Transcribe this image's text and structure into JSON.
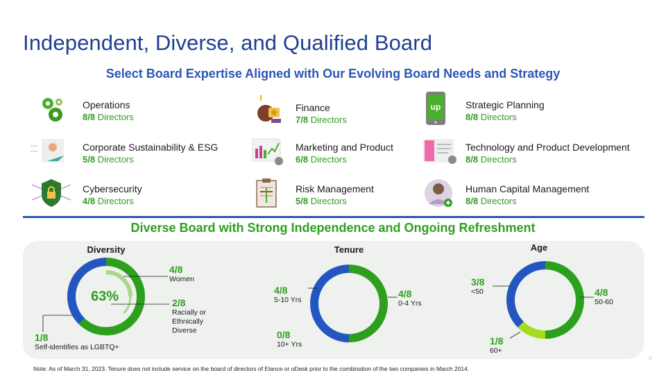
{
  "page": {
    "title": "Independent, Diverse, and Qualified Board",
    "subtitle": "Select Board Expertise Aligned with Our Evolving Board Needs and Strategy",
    "section2_title": "Diverse Board with Strong Independence and Ongoing Refreshment",
    "note": "Note: As of March 31, 2023. Tenure does not include service on the board of directors of Elance or oDesk prior to the combination of the two companies in March 2014.",
    "page_number": "9"
  },
  "expertise": [
    {
      "name": "Operations",
      "fraction": "8/8",
      "unit": "Directors",
      "icon": "gears-icon"
    },
    {
      "name": "Finance",
      "fraction": "7/8",
      "unit": "Directors",
      "icon": "finance-icon"
    },
    {
      "name": "Strategic Planning",
      "fraction": "8/8",
      "unit": "Directors",
      "icon": "upwork-phone-icon"
    },
    {
      "name": "Corporate Sustainability & ESG",
      "fraction": "5/8",
      "unit": "Directors",
      "icon": "sustainability-icon"
    },
    {
      "name": "Marketing and Product",
      "fraction": "6/8",
      "unit": "Directors",
      "icon": "marketing-chart-icon"
    },
    {
      "name": "Technology and Product Development",
      "fraction": "8/8",
      "unit": "Directors",
      "icon": "technology-icon"
    },
    {
      "name": "Cybersecurity",
      "fraction": "4/8",
      "unit": "Directors",
      "icon": "lock-shield-icon"
    },
    {
      "name": "Risk Management",
      "fraction": "5/8",
      "unit": "Directors",
      "icon": "clipboard-icon"
    },
    {
      "name": "Human Capital Management",
      "fraction": "8/8",
      "unit": "Directors",
      "icon": "person-add-icon"
    }
  ],
  "chart_data": [
    {
      "type": "pie",
      "title": "Diversity",
      "center_label": "63%",
      "series": [
        {
          "name": "Women",
          "value": "4/8",
          "fraction": 0.5,
          "color": "#2ca01c"
        },
        {
          "name": "Racially or Ethnically Diverse",
          "value": "2/8",
          "fraction": 0.25,
          "color": "#a8d78a"
        },
        {
          "name": "Self-identifies as LGBTQ+",
          "value": "1/8",
          "fraction": 0.125,
          "color": "#2456c2"
        }
      ]
    },
    {
      "type": "pie",
      "title": "Tenure",
      "series": [
        {
          "name": "0-4 Yrs",
          "value": "4/8",
          "fraction": 0.5,
          "color": "#2ca01c"
        },
        {
          "name": "5-10 Yrs",
          "value": "4/8",
          "fraction": 0.5,
          "color": "#2456c2"
        },
        {
          "name": "10+ Yrs",
          "value": "0/8",
          "fraction": 0,
          "color": "#2ca01c"
        }
      ]
    },
    {
      "type": "pie",
      "title": "Age",
      "series": [
        {
          "name": "50-60",
          "value": "4/8",
          "fraction": 0.5,
          "color": "#2ca01c"
        },
        {
          "name": "60+",
          "value": "1/8",
          "fraction": 0.125,
          "color": "#a6dc1e"
        },
        {
          "name": "<50",
          "value": "3/8",
          "fraction": 0.375,
          "color": "#2456c2"
        }
      ]
    }
  ]
}
